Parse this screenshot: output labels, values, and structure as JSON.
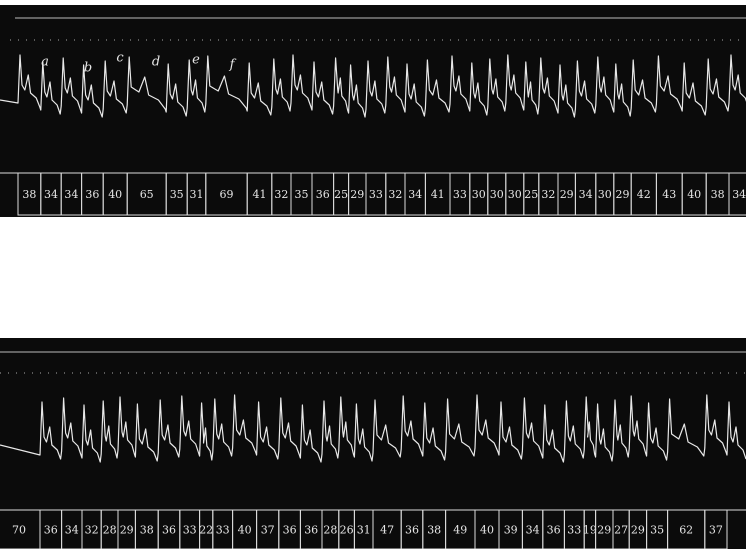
{
  "strips": [
    {
      "labels": [
        "a",
        "b",
        "c",
        "d",
        "e",
        "f"
      ],
      "intervals": [
        38,
        34,
        34,
        36,
        40,
        65,
        35,
        31,
        69,
        41,
        32,
        35,
        36,
        25,
        29,
        33,
        32,
        34,
        41,
        33,
        30,
        30,
        30,
        25,
        32,
        29,
        34,
        30,
        29,
        42,
        43,
        40,
        38,
        34
      ]
    },
    {
      "intervals": [
        70,
        36,
        34,
        32,
        28,
        29,
        38,
        36,
        33,
        22,
        33,
        40,
        37,
        36,
        36,
        28,
        26,
        31,
        47,
        36,
        38,
        49,
        40,
        39,
        34,
        36,
        33,
        19,
        29,
        27,
        29,
        35,
        62,
        37
      ]
    }
  ]
}
